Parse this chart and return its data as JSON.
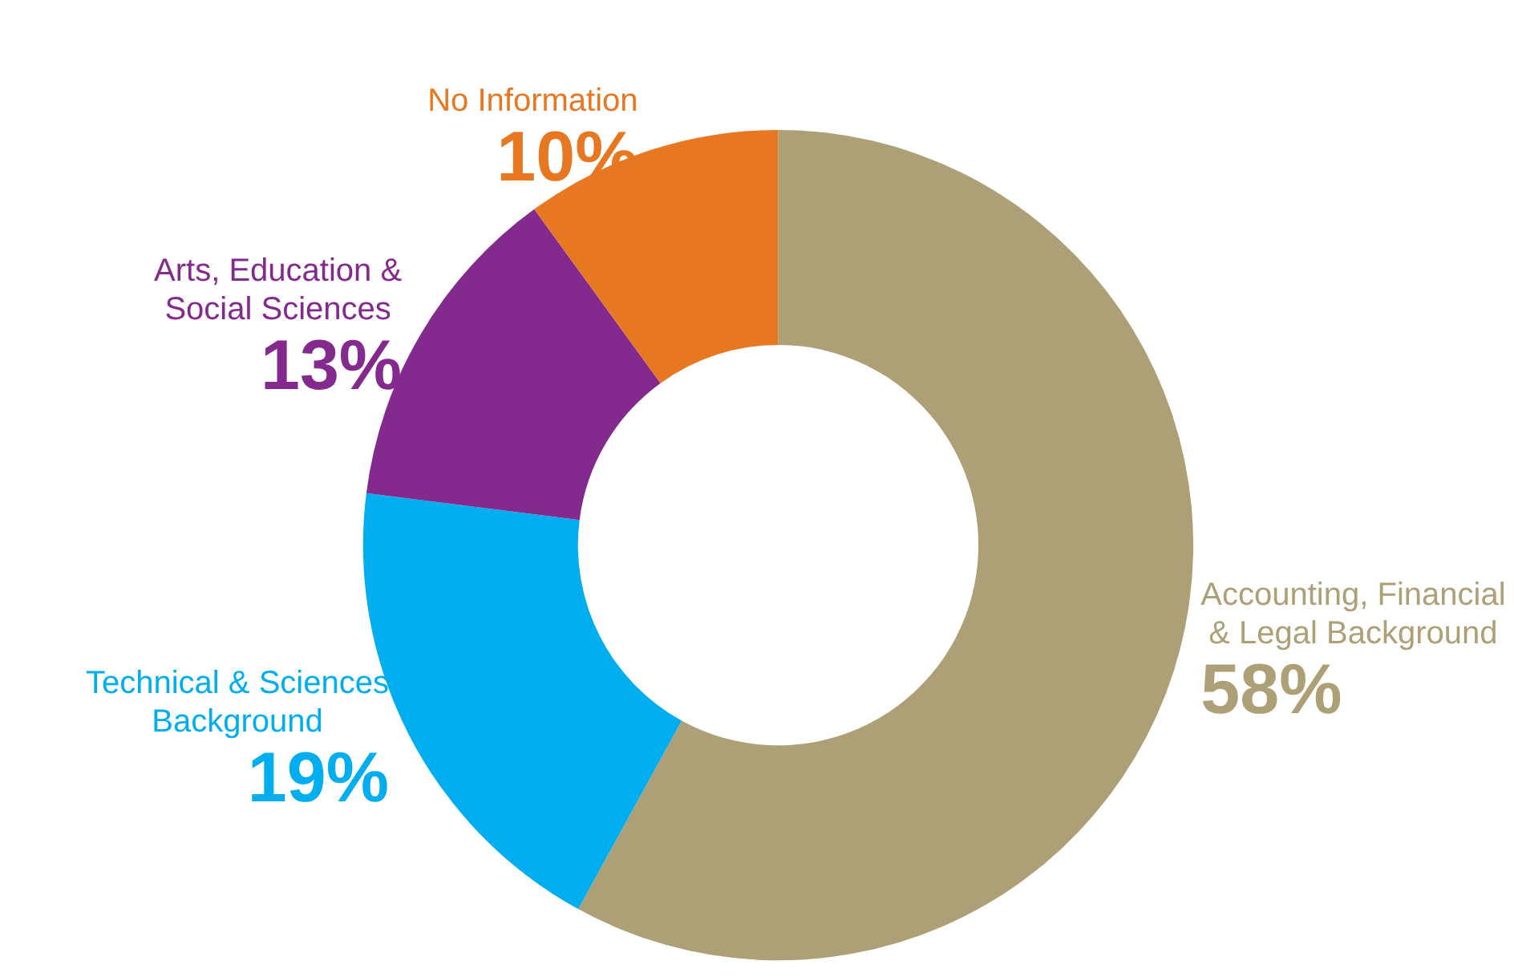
{
  "chart_data": {
    "type": "donut",
    "categories": [
      "Accounting, Financial & Legal Background",
      "Technical & Sciences Background",
      "Arts, Education & Social Sciences",
      "No Information"
    ],
    "values": [
      58,
      19,
      13,
      10
    ],
    "colors": [
      "#ad9f76",
      "#00aeef",
      "#84298e",
      "#e87722"
    ],
    "value_labels": [
      "58%",
      "19%",
      "13%",
      "10%"
    ],
    "legend": false
  }
}
